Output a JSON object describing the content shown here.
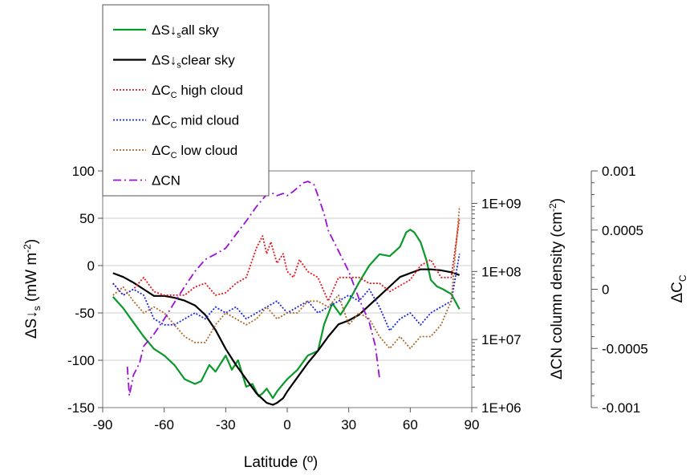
{
  "chart_data": {
    "type": "line",
    "xlabel": "Latitude (º)",
    "xlim": [
      -90,
      90
    ],
    "x_ticks": [
      "-90",
      "-60",
      "-30",
      "0",
      "30",
      "60",
      "90"
    ],
    "y_left": {
      "label_main": "ΔS↓",
      "label_sub": "s",
      "label_unit": " (mW m",
      "label_exp": "-2",
      "label_close": ")",
      "ylim": [
        -150,
        100
      ],
      "ticks": [
        "100",
        "50",
        "0",
        "-50",
        "-100",
        "-150"
      ]
    },
    "y_mid": {
      "label_main": "ΔCN column density (cm",
      "label_exp": "-2",
      "label_close": ")",
      "scale": "log",
      "ylim": [
        1000000,
        3000000000
      ],
      "ticks": [
        "1E+09",
        "1E+08",
        "1E+07",
        "1E+06"
      ]
    },
    "y_right": {
      "label_main": "ΔC",
      "label_sub": "C",
      "ylim": [
        -0.001,
        0.001
      ],
      "ticks": [
        "0.001",
        "0.0005",
        "0",
        "-0.0005",
        "-0.001"
      ]
    },
    "legend": {
      "position": "top-left",
      "entries": [
        {
          "main": "ΔS↓",
          "sub": "s",
          "rest": "all sky"
        },
        {
          "main": "ΔS↓",
          "sub": "s",
          "rest": "clear sky"
        },
        {
          "main": "ΔC",
          "sub": "C",
          "rest": " high cloud"
        },
        {
          "main": "ΔC",
          "sub": "C",
          "rest": " mid cloud"
        },
        {
          "main": "ΔC",
          "sub": "C",
          "rest": " low cloud"
        },
        {
          "main": "ΔCN",
          "sub": "",
          "rest": ""
        }
      ]
    },
    "grid": "horizontal, light gray",
    "series": [
      {
        "style": "solid",
        "color": "#0a9a2a",
        "axis": "left",
        "x": [
          -85,
          -80,
          -75,
          -70,
          -65,
          -60,
          -55,
          -50,
          -45,
          -42,
          -38,
          -35,
          -30,
          -27,
          -24,
          -20,
          -17,
          -14,
          -12,
          -10,
          -7,
          -5,
          -2,
          0,
          5,
          10,
          15,
          18,
          22,
          26,
          30,
          35,
          40,
          45,
          50,
          55,
          58,
          60,
          62,
          65,
          68,
          70,
          73,
          76,
          80,
          84
        ],
        "y": [
          -33,
          -45,
          -60,
          -75,
          -88,
          -95,
          -105,
          -120,
          -125,
          -122,
          -105,
          -112,
          -95,
          -110,
          -100,
          -128,
          -125,
          -138,
          -135,
          -130,
          -140,
          -133,
          -125,
          -120,
          -110,
          -95,
          -90,
          -62,
          -40,
          -52,
          -38,
          -18,
          0,
          12,
          10,
          20,
          35,
          38,
          35,
          25,
          5,
          -15,
          -22,
          -25,
          -30,
          -46
        ]
      },
      {
        "style": "solid",
        "color": "#000000",
        "axis": "left",
        "x": [
          -85,
          -80,
          -75,
          -70,
          -65,
          -60,
          -55,
          -50,
          -45,
          -40,
          -35,
          -30,
          -25,
          -20,
          -15,
          -10,
          -7,
          -5,
          -2,
          0,
          5,
          10,
          15,
          20,
          25,
          30,
          35,
          40,
          45,
          50,
          55,
          60,
          65,
          70,
          75,
          80,
          84
        ],
        "y": [
          -8,
          -12,
          -18,
          -25,
          -32,
          -32,
          -34,
          -37,
          -42,
          -52,
          -68,
          -88,
          -105,
          -120,
          -135,
          -145,
          -147,
          -145,
          -140,
          -133,
          -118,
          -103,
          -90,
          -75,
          -62,
          -58,
          -52,
          -42,
          -32,
          -22,
          -12,
          -8,
          -4,
          -4,
          -5,
          -7,
          -10
        ]
      },
      {
        "style": "dotted",
        "color": "#e8131b",
        "axis": "right",
        "x": [
          -85,
          -80,
          -75,
          -70,
          -65,
          -60,
          -55,
          -50,
          -45,
          -40,
          -35,
          -30,
          -25,
          -20,
          -15,
          -12,
          -10,
          -8,
          -5,
          -2,
          0,
          3,
          6,
          10,
          15,
          20,
          25,
          30,
          35,
          40,
          45,
          50,
          55,
          60,
          65,
          70,
          75,
          80,
          84
        ],
        "y": [
          5e-05,
          -5e-05,
          0,
          0.0001,
          -2e-05,
          -5e-05,
          -5e-05,
          -5e-05,
          2e-05,
          5e-05,
          -5e-05,
          -3e-05,
          5e-05,
          0.0001,
          0.00035,
          0.00045,
          0.0003,
          0.0004,
          0.00022,
          0.0003,
          0.00015,
          0.0001,
          0.00025,
          0.00015,
          0.0001,
          -0.0001,
          0.0001,
          0.0001,
          0.0001,
          5e-05,
          5e-05,
          -2e-05,
          3e-05,
          8e-05,
          0.0002,
          0.00025,
          0.0001,
          0.0001,
          0.0006
        ]
      },
      {
        "style": "dotted",
        "color": "#1a27e0",
        "axis": "right",
        "x": [
          -85,
          -80,
          -75,
          -70,
          -65,
          -60,
          -55,
          -50,
          -45,
          -40,
          -35,
          -30,
          -25,
          -20,
          -15,
          -10,
          -5,
          0,
          5,
          10,
          15,
          20,
          25,
          30,
          35,
          40,
          45,
          50,
          55,
          60,
          65,
          70,
          75,
          80,
          84
        ],
        "y": [
          5e-05,
          -5e-05,
          0,
          -5e-05,
          -0.00025,
          -0.0003,
          -0.0003,
          -0.00025,
          -0.0002,
          -0.00025,
          -0.00015,
          -0.0002,
          -0.00015,
          -0.00025,
          -0.0002,
          -0.00015,
          -0.0001,
          -0.0002,
          -0.00015,
          -0.0001,
          -0.0002,
          -0.00015,
          -0.0001,
          -5e-05,
          -0.0001,
          0,
          -0.00015,
          -0.00035,
          -0.00025,
          -0.0002,
          -0.0003,
          -0.0002,
          -0.00015,
          -0.0001,
          0.0003
        ]
      },
      {
        "style": "dotted",
        "color": "#b06a2c",
        "axis": "right",
        "x": [
          -85,
          -80,
          -75,
          -70,
          -65,
          -60,
          -55,
          -50,
          -45,
          -40,
          -35,
          -30,
          -25,
          -20,
          -15,
          -10,
          -5,
          0,
          5,
          10,
          15,
          20,
          25,
          30,
          35,
          40,
          45,
          50,
          55,
          60,
          65,
          70,
          75,
          80,
          84
        ],
        "y": [
          -5e-05,
          2e-05,
          -0.0001,
          -0.0002,
          -0.00015,
          -0.0002,
          -0.0003,
          -0.0004,
          -0.00045,
          -0.00045,
          -0.0003,
          -0.0002,
          -0.00025,
          -0.0003,
          -0.00025,
          -0.00015,
          -0.00025,
          -0.0002,
          -0.0002,
          -0.0001,
          -0.0001,
          -0.00015,
          -5e-05,
          -0.0003,
          -0.0002,
          -0.00025,
          -0.0004,
          -0.0005,
          -0.0004,
          -0.0005,
          -0.0004,
          -0.0004,
          -0.0003,
          -0.0001,
          0.0007
        ]
      },
      {
        "style": "dashdot",
        "color": "#9b0fd6",
        "axis": "mid",
        "x": [
          -78,
          -77,
          -75,
          -72,
          -70,
          -65,
          -60,
          -55,
          -50,
          -45,
          -40,
          -35,
          -30,
          -25,
          -20,
          -15,
          -12,
          -10,
          -7,
          -5,
          -2,
          0,
          3,
          5,
          8,
          10,
          13,
          15,
          18,
          20,
          25,
          30,
          35,
          40,
          43,
          45
        ],
        "y": [
          4000000,
          1500000,
          3000000,
          4500000,
          8000000,
          12000000,
          20000000,
          35000000,
          60000000,
          100000000,
          150000000,
          180000000,
          220000000,
          350000000,
          550000000,
          900000000,
          1150000000,
          1350000000,
          1400000000,
          1300000000,
          1400000000,
          1300000000,
          1500000000,
          1700000000,
          2000000000,
          2100000000,
          1900000000,
          1300000000,
          700000000,
          400000000,
          200000000,
          100000000,
          40000000,
          18000000,
          8000000,
          2700000
        ]
      }
    ]
  }
}
